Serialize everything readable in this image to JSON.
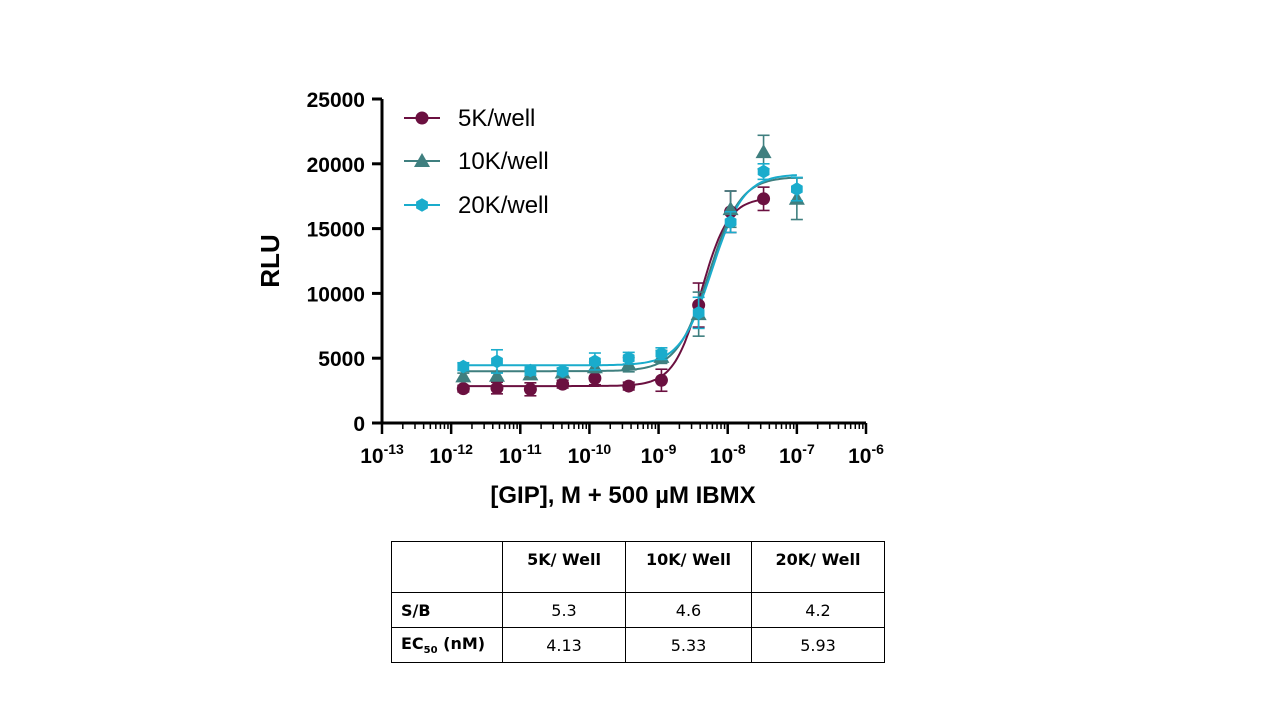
{
  "chart_data": {
    "type": "scatter",
    "title": "",
    "ylabel": "RLU",
    "xlabel": "[GIP], M + 500 µM IBMX",
    "xscale": "log",
    "xlim": [
      1e-13,
      1e-06
    ],
    "ylim": [
      0,
      25000
    ],
    "yticks": [
      0,
      5000,
      10000,
      15000,
      20000,
      25000
    ],
    "ytick_labels": [
      "0",
      "5000",
      "10000",
      "15000",
      "20000",
      "25000"
    ],
    "xtick_labels": [
      {
        "base": "10",
        "exp": "-13"
      },
      {
        "base": "10",
        "exp": "-12"
      },
      {
        "base": "10",
        "exp": "-11"
      },
      {
        "base": "10",
        "exp": "-10"
      },
      {
        "base": "10",
        "exp": "-9"
      },
      {
        "base": "10",
        "exp": "-8"
      },
      {
        "base": "10",
        "exp": "-7"
      },
      {
        "base": "10",
        "exp": "-6"
      }
    ],
    "grid": false,
    "legend_position": "top-left",
    "series": [
      {
        "name": " 5K/well",
        "color": "#6b1040",
        "marker": "circle",
        "x": [
          1.5e-12,
          4.6e-12,
          1.4e-11,
          4.1e-11,
          1.2e-10,
          3.7e-10,
          1.1e-09,
          3.8e-09,
          1.1e-08,
          3.3e-08
        ],
        "y": [
          2650,
          2700,
          2600,
          3000,
          3450,
          2850,
          3300,
          9100,
          16300,
          17300
        ],
        "err": [
          250,
          450,
          500,
          300,
          500,
          300,
          850,
          1700,
          1600,
          900
        ],
        "fit": {
          "bottom": 2850,
          "top": 17400,
          "ec50": 4.13e-09,
          "hill": 2.2
        }
      },
      {
        "name": "10K/well",
        "color": "#3f7f7f",
        "marker": "triangle",
        "x": [
          1.5e-12,
          4.6e-12,
          1.4e-11,
          4.1e-11,
          1.2e-10,
          3.7e-10,
          1.1e-09,
          3.8e-09,
          1.1e-08,
          3.3e-08,
          1e-07
        ],
        "y": [
          3600,
          3650,
          3750,
          3900,
          4300,
          4500,
          5100,
          8400,
          16500,
          20900,
          17300
        ],
        "err": [
          250,
          300,
          350,
          300,
          400,
          550,
          500,
          1700,
          1400,
          1300,
          1600
        ],
        "fit": {
          "bottom": 4000,
          "top": 19000,
          "ec50": 5.33e-09,
          "hill": 1.9
        }
      },
      {
        "name": "20K/well",
        "color": "#1aaccc",
        "marker": "hexagon",
        "x": [
          1.5e-12,
          4.6e-12,
          1.4e-11,
          4.1e-11,
          1.2e-10,
          3.7e-10,
          1.1e-09,
          3.8e-09,
          1.1e-08,
          3.3e-08,
          1e-07
        ],
        "y": [
          4350,
          4750,
          4050,
          4000,
          4750,
          5000,
          5350,
          8500,
          15500,
          19400,
          18050
        ],
        "err": [
          300,
          900,
          350,
          250,
          650,
          450,
          450,
          1200,
          800,
          600,
          900
        ],
        "fit": {
          "bottom": 4450,
          "top": 19200,
          "ec50": 5.93e-09,
          "hill": 1.9
        }
      }
    ]
  },
  "table": {
    "headers": [
      "",
      "5K/ Well",
      "10K/ Well",
      "20K/ Well"
    ],
    "rows": [
      {
        "label": "S/B",
        "values": [
          "5.3",
          "4.6",
          "4.2"
        ]
      },
      {
        "label": "EC",
        "label_sub": "50",
        "label_suffix": " (nM)",
        "values": [
          "4.13",
          "5.33",
          "5.93"
        ]
      }
    ]
  }
}
